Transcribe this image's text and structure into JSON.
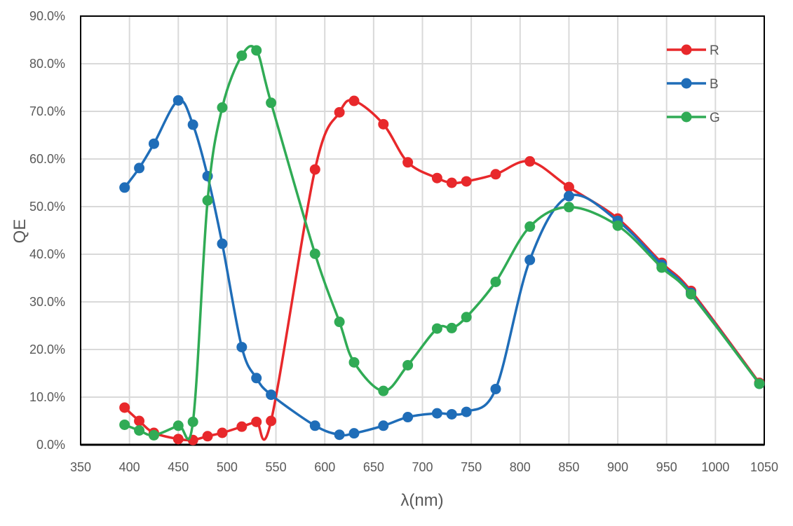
{
  "chart_data": {
    "type": "line",
    "title": "",
    "xlabel": "λ(nm)",
    "ylabel": "QE",
    "xlim": [
      350,
      1050
    ],
    "ylim": [
      0,
      90
    ],
    "x_ticks": [
      "350",
      "400",
      "450",
      "500",
      "550",
      "600",
      "650",
      "700",
      "750",
      "800",
      "850",
      "900",
      "950",
      "1000",
      "1050"
    ],
    "y_ticks": [
      "0.0%",
      "10.0%",
      "20.0%",
      "30.0%",
      "40.0%",
      "50.0%",
      "60.0%",
      "70.0%",
      "80.0%",
      "90.0%"
    ],
    "grid": true,
    "legend": "top-right",
    "smooth": true,
    "x": [
      395,
      410,
      425,
      450,
      465,
      480,
      495,
      515,
      530,
      545,
      590,
      615,
      630,
      660,
      685,
      715,
      730,
      745,
      775,
      810,
      850,
      900,
      945,
      975,
      1045
    ],
    "series": [
      {
        "name": "R",
        "color": "#e8282b",
        "values": [
          7.8,
          5.0,
          2.5,
          1.2,
          1.0,
          1.8,
          2.5,
          3.8,
          4.8,
          5.0,
          57.8,
          69.8,
          72.2,
          67.3,
          59.3,
          56.0,
          55.0,
          55.3,
          56.8,
          59.5,
          54.1,
          47.5,
          38.2,
          32.3,
          13.0
        ]
      },
      {
        "name": "B",
        "color": "#1f6db8",
        "values": [
          54.0,
          58.1,
          63.2,
          72.3,
          67.2,
          56.4,
          42.2,
          20.5,
          14.0,
          10.5,
          4.0,
          2.1,
          2.4,
          4.0,
          5.8,
          6.6,
          6.4,
          6.9,
          11.7,
          38.8,
          52.2,
          47.0,
          37.8,
          31.9,
          12.8
        ]
      },
      {
        "name": "G",
        "color": "#30ab55",
        "values": [
          4.2,
          3.0,
          2.0,
          4.0,
          4.8,
          51.3,
          70.8,
          81.7,
          82.8,
          71.8,
          40.1,
          25.8,
          17.3,
          11.3,
          16.7,
          24.4,
          24.5,
          26.8,
          34.2,
          45.8,
          49.9,
          46.0,
          37.2,
          31.6,
          12.8
        ]
      }
    ]
  }
}
